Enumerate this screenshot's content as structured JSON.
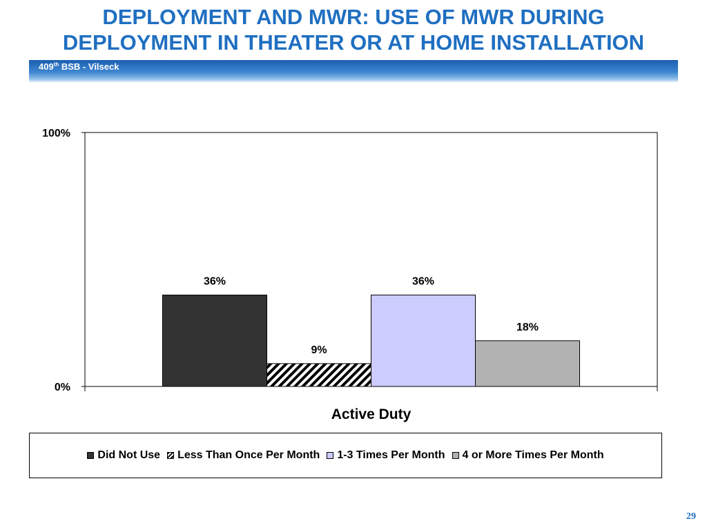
{
  "slide": {
    "title_line1": "DEPLOYMENT AND MWR: USE OF MWR DURING",
    "title_line2": "DEPLOYMENT IN THEATER OR AT HOME INSTALLATION",
    "subtitle_prefix": "409",
    "subtitle_sup": "th",
    "subtitle_suffix": " BSB - Vilseck",
    "page_number": "29",
    "accent_color": "#1f6fc1"
  },
  "chart_data": {
    "type": "bar",
    "title": "",
    "categories": [
      "Active Duty"
    ],
    "xlabel": "",
    "ylabel": "",
    "ylim": [
      0,
      100
    ],
    "y_ticks": [
      "0%",
      "100%"
    ],
    "grid": false,
    "legend_position": "bottom",
    "series": [
      {
        "name": "Did Not Use",
        "values": [
          36
        ],
        "label": "36%",
        "color": "#333333",
        "fill": "solid"
      },
      {
        "name": "Less Than Once Per Month",
        "values": [
          9
        ],
        "label": "9%",
        "color": "#000000",
        "fill": "diagonal-hatch"
      },
      {
        "name": "1-3 Times Per Month",
        "values": [
          36
        ],
        "label": "36%",
        "color": "#ccccff",
        "fill": "solid"
      },
      {
        "name": "4 or More Times Per Month",
        "values": [
          18
        ],
        "label": "18%",
        "color": "#b2b2b2",
        "fill": "solid"
      }
    ]
  }
}
